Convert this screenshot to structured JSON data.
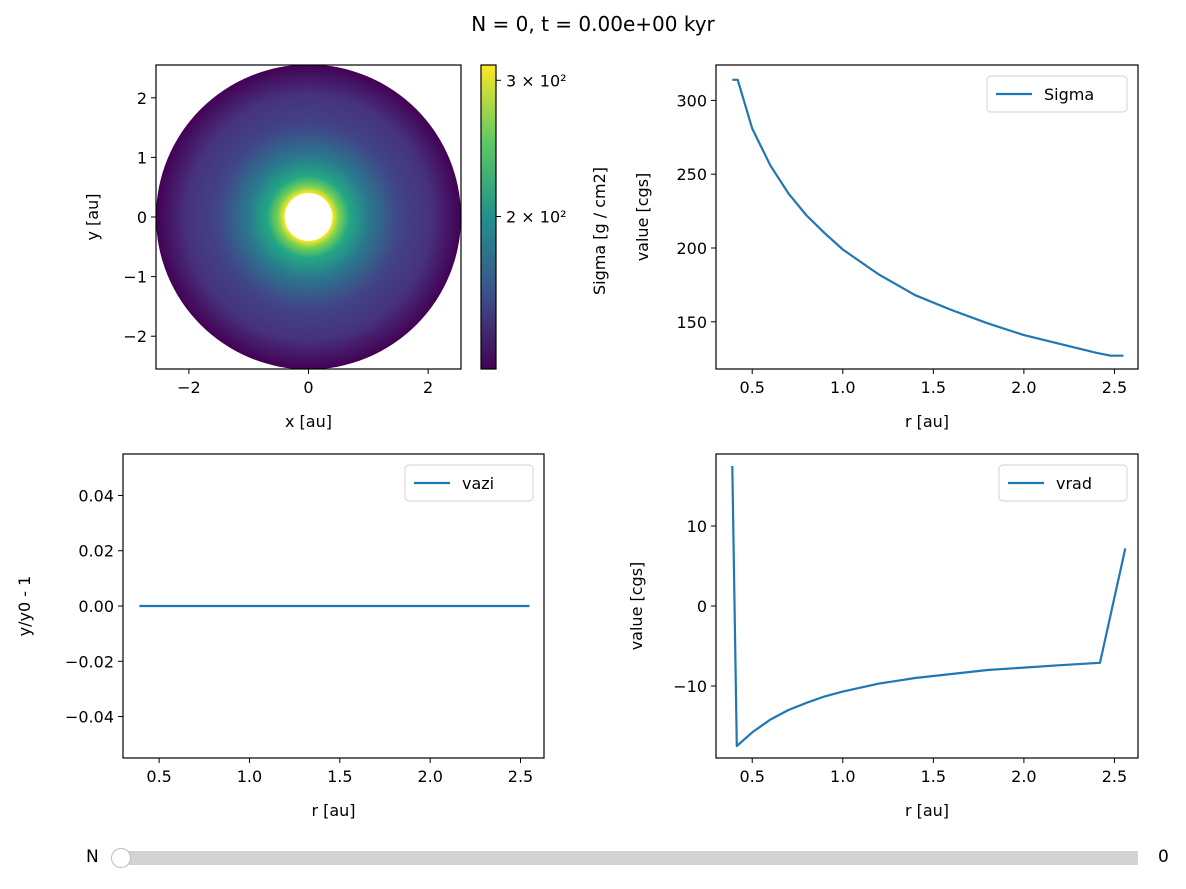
{
  "figure": {
    "title": "N = 0, t = 0.00e+00 kyr"
  },
  "slider": {
    "label": "N",
    "value": "0",
    "fraction": 0
  },
  "chart_data": [
    {
      "type": "heatmap",
      "subtype": "polar disk map",
      "title": "",
      "xlabel": "x [au]",
      "ylabel": "y [au]",
      "xlim": [
        -2.55,
        2.55
      ],
      "ylim": [
        -2.55,
        2.55
      ],
      "xticks": [
        -2,
        0,
        2
      ],
      "xtick_labels": [
        "−2",
        "0",
        "2"
      ],
      "yticks": [
        -2,
        -1,
        0,
        1,
        2
      ],
      "ytick_labels": [
        "−2",
        "−1",
        "0",
        "1",
        "2"
      ],
      "r_inner": 0.4,
      "r_outer": 2.55,
      "colormap": "viridis",
      "colorbar": {
        "label": "Sigma  [g / cm2]",
        "scale": "log",
        "range": [
          127,
          314
        ],
        "ticks": [
          300,
          200
        ],
        "tick_labels": [
          "3 × 10²",
          "2 × 10²"
        ]
      }
    },
    {
      "type": "line",
      "xlabel": "r [au]",
      "ylabel": "value [cgs]",
      "xlim": [
        0.3,
        2.63
      ],
      "ylim": [
        118,
        324
      ],
      "xticks": [
        0.5,
        1.0,
        1.5,
        2.0,
        2.5
      ],
      "xtick_labels": [
        "0.5",
        "1.0",
        "1.5",
        "2.0",
        "2.5"
      ],
      "yticks": [
        150,
        200,
        250,
        300
      ],
      "ytick_labels": [
        "150",
        "200",
        "250",
        "300"
      ],
      "legend_position": "top-right",
      "series": [
        {
          "name": "Sigma",
          "color": "#1f77b4",
          "x": [
            0.39,
            0.42,
            0.5,
            0.6,
            0.7,
            0.8,
            0.9,
            1.0,
            1.2,
            1.4,
            1.6,
            1.8,
            2.0,
            2.2,
            2.4,
            2.48,
            2.55
          ],
          "values": [
            314,
            314,
            281,
            256,
            237,
            222,
            210,
            199,
            182,
            168,
            158,
            149,
            141,
            135,
            129,
            127,
            127
          ]
        }
      ]
    },
    {
      "type": "line",
      "xlabel": "r [au]",
      "ylabel": "y/y0 - 1",
      "xlim": [
        0.3,
        2.63
      ],
      "ylim": [
        -0.055,
        0.055
      ],
      "xticks": [
        0.5,
        1.0,
        1.5,
        2.0,
        2.5
      ],
      "xtick_labels": [
        "0.5",
        "1.0",
        "1.5",
        "2.0",
        "2.5"
      ],
      "yticks": [
        -0.04,
        -0.02,
        0.0,
        0.02,
        0.04
      ],
      "ytick_labels": [
        "−0.04",
        "−0.02",
        "0.00",
        "0.02",
        "0.04"
      ],
      "legend_position": "top-right",
      "series": [
        {
          "name": "vazi",
          "color": "#1f77b4",
          "x": [
            0.39,
            2.55
          ],
          "values": [
            0.0,
            0.0
          ]
        }
      ]
    },
    {
      "type": "line",
      "xlabel": "r [au]",
      "ylabel": "value [cgs]",
      "xlim": [
        0.3,
        2.63
      ],
      "ylim": [
        -19,
        19
      ],
      "xticks": [
        0.5,
        1.0,
        1.5,
        2.0,
        2.5
      ],
      "xtick_labels": [
        "0.5",
        "1.0",
        "1.5",
        "2.0",
        "2.5"
      ],
      "yticks": [
        -10,
        0,
        10
      ],
      "ytick_labels": [
        "−10",
        "0",
        "10"
      ],
      "legend_position": "top-right",
      "series": [
        {
          "name": "vrad",
          "color": "#1f77b4",
          "x": [
            0.39,
            0.415,
            0.5,
            0.6,
            0.7,
            0.8,
            0.9,
            1.0,
            1.2,
            1.4,
            1.6,
            1.8,
            2.0,
            2.2,
            2.42,
            2.56
          ],
          "values": [
            17.5,
            -17.5,
            -15.8,
            -14.2,
            -13.0,
            -12.1,
            -11.3,
            -10.7,
            -9.7,
            -9.0,
            -8.5,
            -8.0,
            -7.7,
            -7.4,
            -7.1,
            7.2
          ]
        }
      ]
    }
  ]
}
